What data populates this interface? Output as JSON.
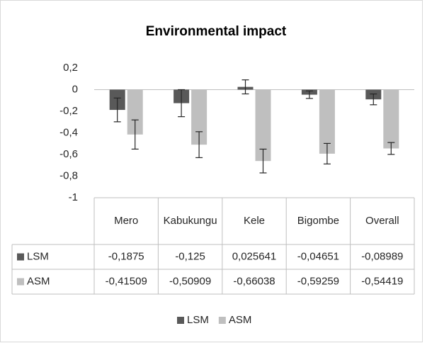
{
  "chart_data": {
    "type": "bar",
    "title": "Environmental impact",
    "categories": [
      "Mero",
      "Kabukungu",
      "Kele",
      "Bigombe",
      "Overall"
    ],
    "series": [
      {
        "name": "LSM",
        "color": "#595959",
        "values": [
          -0.1875,
          -0.125,
          0.025641,
          -0.04651,
          -0.08989
        ],
        "value_labels": [
          "-0,1875",
          "-0,125",
          "0,025641",
          "-0,04651",
          "-0,08989"
        ],
        "errors": [
          0.11,
          0.125,
          0.065,
          0.035,
          0.05
        ]
      },
      {
        "name": "ASM",
        "color": "#bfbfbf",
        "values": [
          -0.41509,
          -0.50909,
          -0.66038,
          -0.59259,
          -0.54419
        ],
        "value_labels": [
          "-0,41509",
          "-0,50909",
          "-0,66038",
          "-0,59259",
          "-0,54419"
        ],
        "errors": [
          0.135,
          0.12,
          0.11,
          0.095,
          0.055
        ]
      }
    ],
    "ylim": [
      -1,
      0.2
    ],
    "yticks": [
      -1,
      {
        "value": -0.8,
        "label": "-0,8"
      },
      {
        "value": -0.6,
        "label": "-0,6"
      },
      {
        "value": -0.4,
        "label": "-0,4"
      },
      {
        "value": -0.2,
        "label": "-0,2"
      },
      0,
      {
        "value": 0.2,
        "label": "0,2"
      }
    ],
    "legend": "bottom",
    "grid": false
  }
}
